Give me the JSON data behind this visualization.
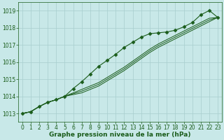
{
  "background_color": "#c8e8e8",
  "grid_color": "#a8cece",
  "line_color": "#1a5c1a",
  "title": "Graphe pression niveau de la mer (hPa)",
  "tick_fontsize": 5.5,
  "title_fontsize": 6.5,
  "xlim": [
    -0.5,
    23.5
  ],
  "ylim": [
    1012.5,
    1019.5
  ],
  "yticks": [
    1013,
    1014,
    1015,
    1016,
    1017,
    1018,
    1019
  ],
  "xticks": [
    0,
    1,
    2,
    3,
    4,
    5,
    6,
    7,
    8,
    9,
    10,
    11,
    12,
    13,
    14,
    15,
    16,
    17,
    18,
    19,
    20,
    21,
    22,
    23
  ],
  "series": [
    [
      1013.0,
      1013.1,
      1013.4,
      1013.65,
      1013.8,
      1014.0,
      1014.45,
      1014.85,
      1015.3,
      1015.75,
      1016.1,
      1016.45,
      1016.85,
      1017.15,
      1017.45,
      1017.65,
      1017.7,
      1017.75,
      1017.85,
      1018.05,
      1018.3,
      1018.75,
      1019.0,
      1018.6
    ],
    [
      1013.0,
      1013.1,
      1013.4,
      1013.65,
      1013.8,
      1014.0,
      1014.2,
      1014.4,
      1014.6,
      1014.8,
      1015.1,
      1015.4,
      1015.7,
      1016.05,
      1016.4,
      1016.75,
      1017.05,
      1017.3,
      1017.55,
      1017.8,
      1018.05,
      1018.3,
      1018.55,
      1018.6
    ],
    [
      1013.0,
      1013.1,
      1013.4,
      1013.65,
      1013.8,
      1014.0,
      1014.15,
      1014.3,
      1014.5,
      1014.7,
      1015.0,
      1015.3,
      1015.6,
      1015.95,
      1016.3,
      1016.65,
      1016.95,
      1017.2,
      1017.45,
      1017.7,
      1017.95,
      1018.2,
      1018.45,
      1018.6
    ],
    [
      1013.0,
      1013.1,
      1013.4,
      1013.65,
      1013.8,
      1014.0,
      1014.1,
      1014.2,
      1014.4,
      1014.6,
      1014.9,
      1015.2,
      1015.5,
      1015.85,
      1016.2,
      1016.55,
      1016.85,
      1017.1,
      1017.35,
      1017.6,
      1017.85,
      1018.1,
      1018.35,
      1018.6
    ]
  ],
  "marker": "D",
  "marker_size": 2.5
}
